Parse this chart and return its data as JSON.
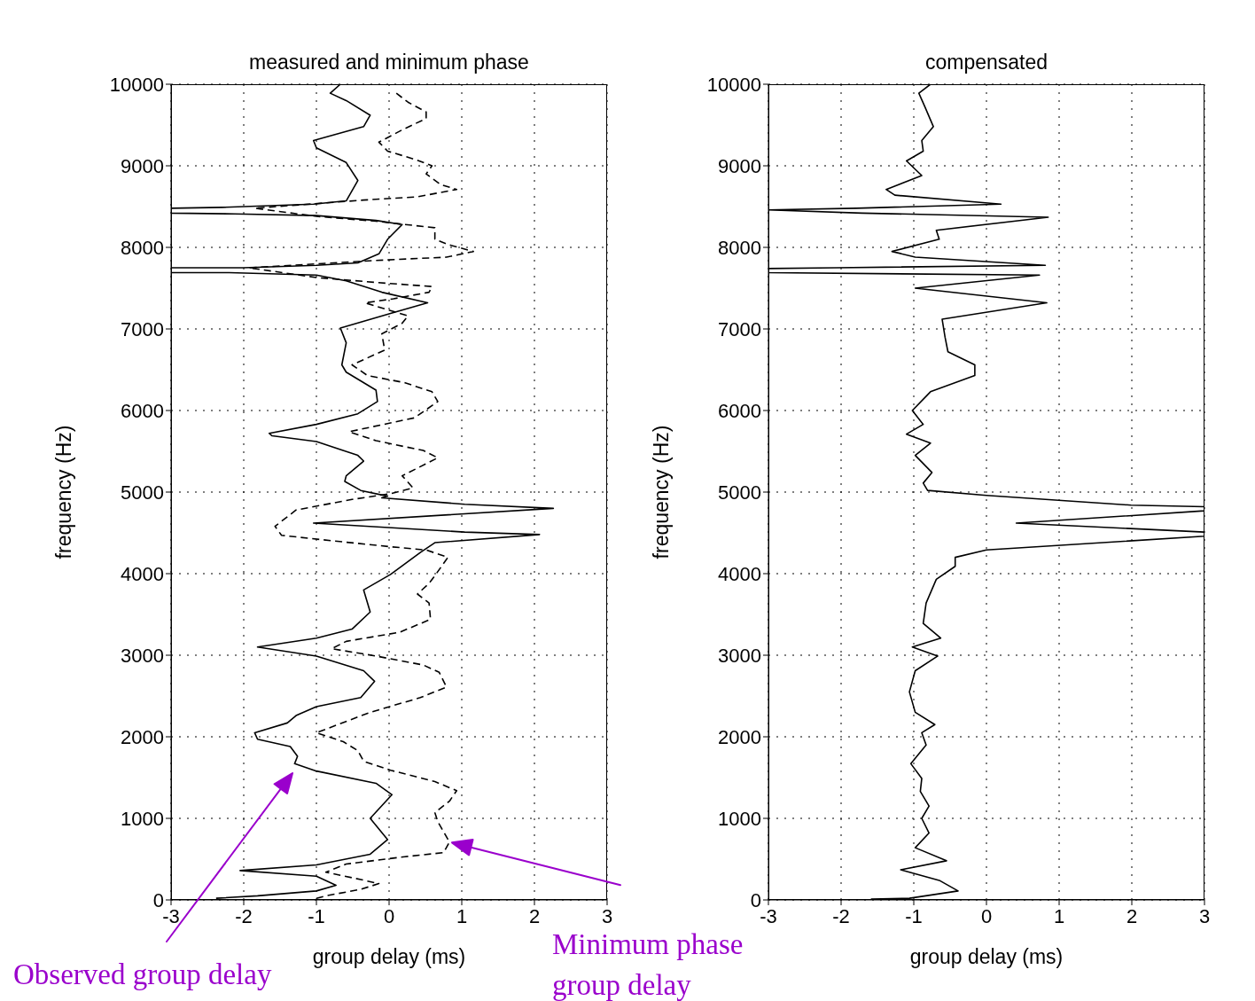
{
  "chart_data": [
    {
      "type": "line",
      "title": "measured and minimum phase",
      "xlabel": "group delay (ms)",
      "ylabel": "frequency (Hz)",
      "xlim": [
        -3,
        3
      ],
      "ylim": [
        0,
        10000
      ],
      "xticks": [
        -3,
        -2,
        -1,
        0,
        1,
        2,
        3
      ],
      "yticks": [
        0,
        1000,
        2000,
        3000,
        4000,
        5000,
        6000,
        7000,
        8000,
        9000,
        10000
      ],
      "grid": true,
      "marker": "none",
      "series": [
        {
          "color": "#000000",
          "line_style": "solid",
          "x": [
            -0.67,
            -0.81,
            -0.59,
            -0.26,
            -0.35,
            -1.04,
            -1.0,
            -0.59,
            -0.43,
            -0.59,
            -1.04,
            -2.3,
            -3,
            -3,
            -2.13,
            -1.0,
            -0.18,
            0.18,
            -0.02,
            -0.14,
            -0.43,
            -1.0,
            -2.01,
            -3,
            -3,
            -2.2,
            -1.0,
            -0.59,
            -0.1,
            0.53,
            0.02,
            -0.67,
            -0.59,
            -0.65,
            -0.59,
            -0.18,
            -0.16,
            -0.43,
            -1.0,
            -1.65,
            -1.61,
            -1.0,
            -0.43,
            -0.35,
            -0.59,
            -0.61,
            -0.39,
            -0.02,
            -0.1,
            1.04,
            2.26,
            -1.04,
            1.04,
            2.07,
            0.63,
            0.43,
            0.02,
            -0.35,
            -0.26,
            -0.51,
            -1.0,
            -1.81,
            -1.0,
            -0.35,
            -0.2,
            -0.39,
            -1.0,
            -1.28,
            -1.4,
            -1.85,
            -1.81,
            -1.36,
            -1.26,
            -1.3,
            -1.0,
            -0.18,
            0.04,
            -0.26,
            -0.02,
            -0.26,
            -1.0,
            -2.05,
            -1.0,
            -0.73,
            -1.0,
            -1.81,
            -2.38
          ],
          "values": [
            10000,
            9890,
            9800,
            9620,
            9480,
            9310,
            9220,
            9040,
            8820,
            8570,
            8530,
            8490,
            8480,
            8420,
            8410,
            8390,
            8330,
            8280,
            8100,
            7920,
            7810,
            7780,
            7750,
            7750,
            7690,
            7690,
            7660,
            7590,
            7450,
            7320,
            7190,
            7010,
            6830,
            6560,
            6470,
            6250,
            6110,
            5960,
            5830,
            5720,
            5690,
            5620,
            5450,
            5380,
            5200,
            5130,
            5020,
            4950,
            4930,
            4850,
            4800,
            4620,
            4510,
            4480,
            4380,
            4260,
            3990,
            3800,
            3530,
            3320,
            3210,
            3100,
            2990,
            2810,
            2680,
            2480,
            2370,
            2260,
            2170,
            2050,
            1970,
            1880,
            1760,
            1670,
            1580,
            1430,
            1290,
            1000,
            740,
            560,
            430,
            360,
            290,
            180,
            110,
            50,
            20
          ]
        },
        {
          "color": "#000000",
          "line_style": "dashed",
          "x": [
            0.1,
            0.26,
            0.51,
            0.51,
            0.18,
            -0.14,
            -0.02,
            0.35,
            0.59,
            0.51,
            0.71,
            0.93,
            0.39,
            -0.35,
            -1.85,
            -1.0,
            -0.18,
            0.63,
            0.63,
            0.83,
            1.16,
            0.79,
            -0.18,
            -1.93,
            -1.0,
            -0.18,
            0.59,
            0.55,
            0.06,
            -0.33,
            0.26,
            0.18,
            -0.1,
            -0.06,
            -0.51,
            -0.3,
            0.22,
            0.59,
            0.67,
            0.35,
            -0.55,
            -0.18,
            0.47,
            0.67,
            0.18,
            0.33,
            0.02,
            -0.51,
            -1.28,
            -1.57,
            -1.48,
            -0.75,
            0.02,
            0.51,
            0.81,
            0.65,
            0.55,
            0.39,
            0.55,
            0.57,
            0.14,
            -0.59,
            -0.79,
            -0.18,
            0.47,
            0.69,
            0.79,
            0.43,
            -0.26,
            -1.0,
            -0.63,
            -0.43,
            -0.35,
            0.02,
            0.63,
            0.93,
            0.83,
            0.63,
            0.67,
            0.83,
            0.75,
            0.22,
            -0.59,
            -0.87,
            -0.39,
            -0.14,
            -0.39,
            -0.87,
            -1.0
          ],
          "values": [
            9890,
            9780,
            9660,
            9580,
            9440,
            9290,
            9180,
            9080,
            9000,
            8900,
            8770,
            8710,
            8620,
            8580,
            8480,
            8380,
            8320,
            8240,
            8100,
            8030,
            7950,
            7880,
            7840,
            7750,
            7630,
            7570,
            7520,
            7450,
            7370,
            7320,
            7160,
            7070,
            6940,
            6740,
            6560,
            6430,
            6340,
            6230,
            6110,
            5910,
            5740,
            5630,
            5510,
            5420,
            5200,
            5050,
            4980,
            4910,
            4780,
            4580,
            4470,
            4400,
            4330,
            4290,
            4200,
            4000,
            3880,
            3750,
            3640,
            3440,
            3280,
            3170,
            3080,
            2990,
            2880,
            2790,
            2610,
            2480,
            2300,
            2050,
            1940,
            1830,
            1700,
            1590,
            1450,
            1340,
            1210,
            1070,
            960,
            710,
            580,
            530,
            440,
            340,
            250,
            200,
            130,
            50,
            20
          ]
        }
      ],
      "annotations": [
        "Observed group delay",
        "Minimum phase group delay"
      ]
    },
    {
      "type": "line",
      "title": "compensated",
      "xlabel": "group delay (ms)",
      "ylabel": "frequency (Hz)",
      "xlim": [
        -3,
        3
      ],
      "ylim": [
        0,
        10000
      ],
      "xticks": [
        -3,
        -2,
        -1,
        0,
        1,
        2,
        3
      ],
      "yticks": [
        0,
        1000,
        2000,
        3000,
        4000,
        5000,
        6000,
        7000,
        8000,
        9000,
        10000
      ],
      "grid": true,
      "marker": "none",
      "series": [
        {
          "color": "#000000",
          "line_style": "solid",
          "x": [
            -0.77,
            -0.93,
            -0.85,
            -0.73,
            -0.89,
            -0.87,
            -1.1,
            -0.89,
            -1.38,
            -1.26,
            0.2,
            -1.79,
            -3,
            -1.71,
            0.85,
            -0.69,
            -0.65,
            -1.3,
            -0.98,
            0.81,
            -2.07,
            -3,
            -3,
            0.73,
            -0.98,
            0.83,
            -0.61,
            -0.57,
            -0.53,
            -0.16,
            -0.16,
            -0.77,
            -1.02,
            -0.87,
            -1.1,
            -0.77,
            -0.98,
            -0.75,
            -0.87,
            -0.81,
            0.0,
            1.99,
            3,
            3,
            0.41,
            3,
            3,
            0.0,
            -0.43,
            -0.43,
            -0.69,
            -0.83,
            -0.87,
            -0.63,
            -1.02,
            -0.67,
            -0.98,
            -1.06,
            -0.98,
            -0.71,
            -0.89,
            -0.83,
            -1.04,
            -0.89,
            -0.91,
            -0.79,
            -0.89,
            -0.79,
            -0.98,
            -0.55,
            -1.18,
            -0.65,
            -0.39,
            -1.06,
            -1.59
          ],
          "values": [
            10000,
            9890,
            9730,
            9480,
            9310,
            9180,
            9060,
            8880,
            8710,
            8640,
            8530,
            8480,
            8460,
            8420,
            8370,
            8210,
            8100,
            7950,
            7880,
            7780,
            7750,
            7740,
            7690,
            7660,
            7500,
            7320,
            7120,
            6900,
            6720,
            6560,
            6430,
            6230,
            6000,
            5830,
            5710,
            5600,
            5450,
            5240,
            5110,
            5020,
            4960,
            4840,
            4820,
            4770,
            4620,
            4510,
            4460,
            4290,
            4200,
            4090,
            3930,
            3640,
            3390,
            3210,
            3100,
            2990,
            2810,
            2550,
            2300,
            2150,
            2050,
            1900,
            1670,
            1490,
            1330,
            1150,
            1000,
            820,
            640,
            480,
            370,
            240,
            110,
            20,
            10
          ]
        }
      ]
    }
  ]
}
